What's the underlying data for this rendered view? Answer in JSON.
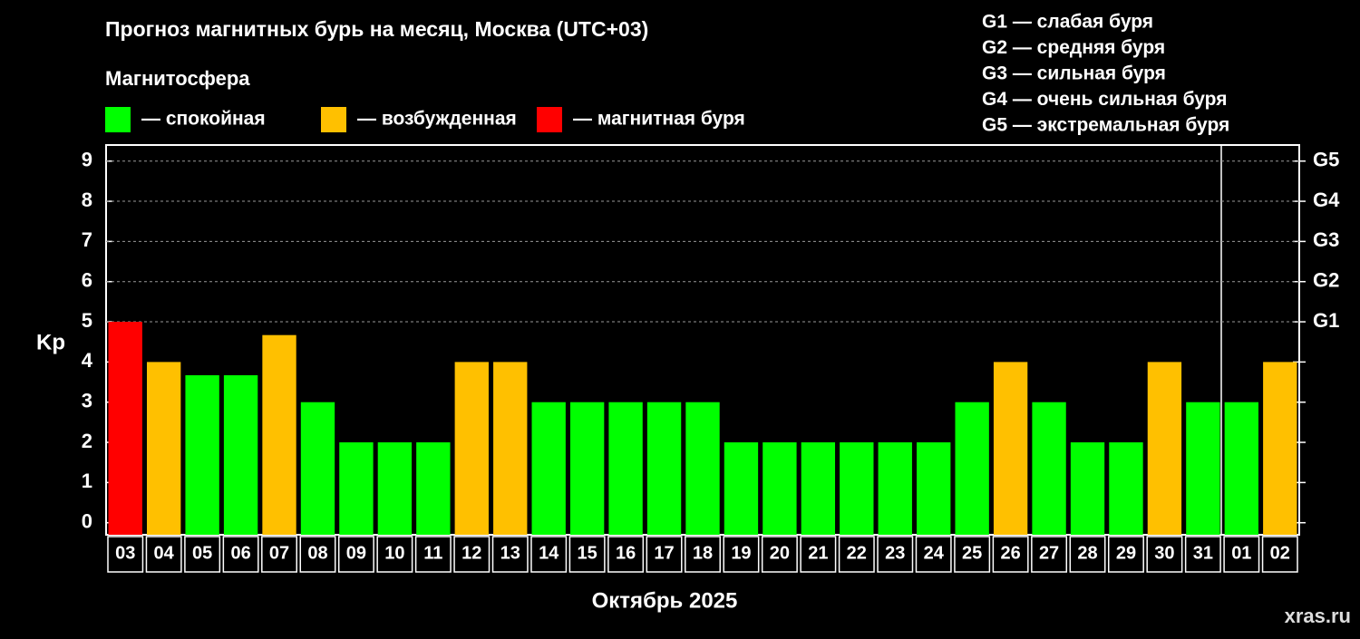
{
  "chart_data": {
    "type": "bar",
    "title": "Прогноз магнитных бурь на месяц, Москва (UTC+03)",
    "subtitle": "Магнитосфера",
    "legend": [
      {
        "label": "— спокойная",
        "color": "#00ff00"
      },
      {
        "label": "— возбужденная",
        "color": "#ffc000"
      },
      {
        "label": "— магнитная буря",
        "color": "#ff0000"
      }
    ],
    "scale_notes": [
      "G1 — слабая буря",
      "G2 — средняя буря",
      "G3 — сильная буря",
      "G4 — очень сильная буря",
      "G5 — экстремальная буря"
    ],
    "ylabel": "Kp",
    "xlabel": "Октябрь 2025",
    "watermark": "xras.ru",
    "categories": [
      "03",
      "04",
      "05",
      "06",
      "07",
      "08",
      "09",
      "10",
      "11",
      "12",
      "13",
      "14",
      "15",
      "16",
      "17",
      "18",
      "19",
      "20",
      "21",
      "22",
      "23",
      "24",
      "25",
      "26",
      "27",
      "28",
      "29",
      "30",
      "31",
      "01",
      "02"
    ],
    "values": [
      5,
      4,
      3.67,
      3.67,
      4.67,
      3,
      2,
      2,
      2,
      4,
      4,
      3,
      3,
      3,
      3,
      3,
      2,
      2,
      2,
      2,
      2,
      2,
      3,
      4,
      3,
      2,
      2,
      4,
      3,
      3,
      4
    ],
    "colors": [
      "#ff0000",
      "#ffc000",
      "#00ff00",
      "#00ff00",
      "#ffc000",
      "#00ff00",
      "#00ff00",
      "#00ff00",
      "#00ff00",
      "#ffc000",
      "#ffc000",
      "#00ff00",
      "#00ff00",
      "#00ff00",
      "#00ff00",
      "#00ff00",
      "#00ff00",
      "#00ff00",
      "#00ff00",
      "#00ff00",
      "#00ff00",
      "#00ff00",
      "#00ff00",
      "#ffc000",
      "#00ff00",
      "#00ff00",
      "#00ff00",
      "#ffc000",
      "#00ff00",
      "#00ff00",
      "#ffc000"
    ],
    "ylim": [
      -0.3,
      9.4
    ],
    "yticks": [
      0,
      1,
      2,
      3,
      4,
      5,
      6,
      7,
      8,
      9
    ],
    "y2lim": [
      -0.3,
      9.4
    ],
    "y2ticks": [
      {
        "value": 5,
        "label": "G1"
      },
      {
        "value": 6,
        "label": "G2"
      },
      {
        "value": 7,
        "label": "G3"
      },
      {
        "value": 8,
        "label": "G4"
      },
      {
        "value": 9,
        "label": "G5"
      }
    ],
    "grid": true
  }
}
